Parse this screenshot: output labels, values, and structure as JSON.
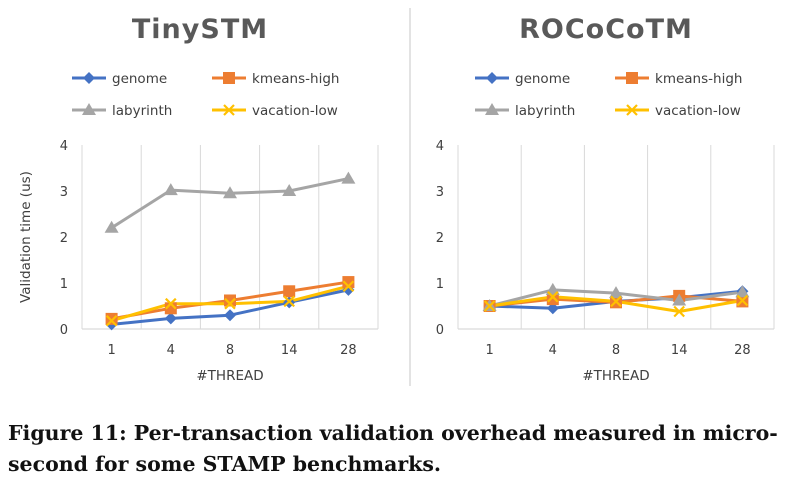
{
  "colors": {
    "genome": "#4472C4",
    "kmeans-high": "#ED7D31",
    "labyrinth": "#A5A5A5",
    "vacation-low": "#FFC000",
    "gridline": "#D9D9D9",
    "divider": "#D0D0D0"
  },
  "chart_data": [
    {
      "type": "line",
      "title": "TinySTM",
      "xlabel": "#THREAD",
      "ylabel": "Validation time (us)",
      "categories": [
        "1",
        "4",
        "8",
        "14",
        "28"
      ],
      "ylim": [
        0,
        4
      ],
      "yticks": [
        0,
        1,
        2,
        3,
        4
      ],
      "grid": "vertical",
      "legend": "top",
      "series": [
        {
          "name": "genome",
          "marker": "diamond",
          "values": [
            0.1,
            0.23,
            0.3,
            0.58,
            0.85
          ]
        },
        {
          "name": "kmeans-high",
          "marker": "square",
          "values": [
            0.22,
            0.45,
            0.62,
            0.82,
            1.02
          ]
        },
        {
          "name": "labyrinth",
          "marker": "triangle",
          "values": [
            2.2,
            3.02,
            2.95,
            3.0,
            3.27
          ]
        },
        {
          "name": "vacation-low",
          "marker": "x",
          "values": [
            0.18,
            0.55,
            0.55,
            0.6,
            0.93
          ]
        }
      ]
    },
    {
      "type": "line",
      "title": "ROCoCoTM",
      "xlabel": "#THREAD",
      "ylabel": "",
      "categories": [
        "1",
        "4",
        "8",
        "14",
        "28"
      ],
      "ylim": [
        0,
        4
      ],
      "yticks": [
        0,
        1,
        2,
        3,
        4
      ],
      "grid": "vertical",
      "legend": "top",
      "series": [
        {
          "name": "genome",
          "marker": "diamond",
          "values": [
            0.5,
            0.45,
            0.6,
            0.68,
            0.82
          ]
        },
        {
          "name": "kmeans-high",
          "marker": "square",
          "values": [
            0.5,
            0.65,
            0.58,
            0.72,
            0.6
          ]
        },
        {
          "name": "labyrinth",
          "marker": "triangle",
          "values": [
            0.5,
            0.85,
            0.78,
            0.62,
            0.8
          ]
        },
        {
          "name": "vacation-low",
          "marker": "x",
          "values": [
            0.5,
            0.7,
            0.6,
            0.38,
            0.62
          ]
        }
      ]
    }
  ],
  "caption": {
    "text": "Figure 11: Per-transaction validation overhead measured in micro-second for some STAMP benchmarks."
  }
}
